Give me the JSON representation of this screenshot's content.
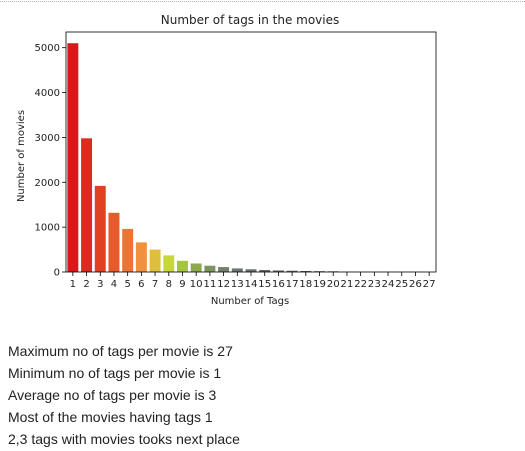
{
  "chart_data": {
    "type": "bar",
    "title": "Number of tags in the movies",
    "xlabel": "Number of Tags",
    "ylabel": "Number of movies",
    "categories": [
      "1",
      "2",
      "3",
      "4",
      "5",
      "6",
      "7",
      "8",
      "9",
      "10",
      "11",
      "12",
      "13",
      "14",
      "15",
      "16",
      "17",
      "18",
      "19",
      "20",
      "21",
      "22",
      "23",
      "24",
      "25",
      "26",
      "27"
    ],
    "values": [
      5100,
      2980,
      1920,
      1320,
      960,
      660,
      500,
      370,
      250,
      190,
      140,
      110,
      80,
      60,
      45,
      35,
      28,
      22,
      18,
      15,
      5,
      4,
      3,
      3,
      2,
      2,
      1
    ],
    "colors": [
      "#d7191c",
      "#db2b1f",
      "#e04122",
      "#e65a2b",
      "#ec7535",
      "#f0913f",
      "#dcbf3d",
      "#c7d63c",
      "#a5c43f",
      "#8ea84e",
      "#7e9460",
      "#72806e",
      "#6c7570",
      "#666b6d",
      "#62666a",
      "#606468",
      "#5e6266",
      "#5c6064",
      "#5a5e62",
      "#585c60",
      "#565a5e",
      "#55595d",
      "#54585c",
      "#53575b",
      "#52565a",
      "#515559",
      "#505458"
    ],
    "yticks": [
      0,
      1000,
      2000,
      3000,
      4000,
      5000
    ],
    "ylim": [
      0,
      5350
    ],
    "grid": false,
    "legend": "none"
  },
  "summary": [
    "Maximum no of tags per movie is 27",
    "Minimum no of tags per movie is 1",
    "Average no of tags per movie is 3",
    "Most of the movies having tags 1",
    "2,3 tags with movies tooks next place"
  ]
}
